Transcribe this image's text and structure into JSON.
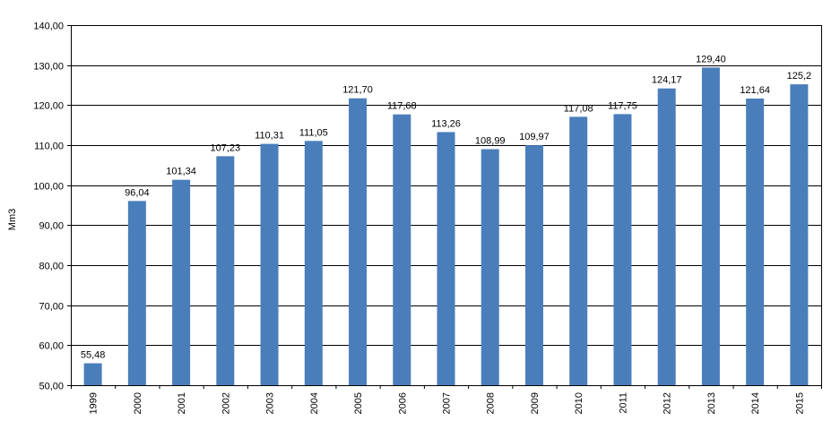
{
  "chart_data": {
    "type": "bar",
    "title": "",
    "xlabel": "",
    "ylabel": "Mm3",
    "ylim": [
      50,
      140
    ],
    "ytick_step": 10,
    "ytick_labels": [
      "50,00",
      "60,00",
      "70,00",
      "80,00",
      "90,00",
      "100,00",
      "110,00",
      "120,00",
      "130,00",
      "140,00"
    ],
    "grid": true,
    "legend": "none",
    "bar_color": "#4a7ebb",
    "categories": [
      "1999",
      "2000",
      "2001",
      "2002",
      "2003",
      "2004",
      "2005",
      "2006",
      "2007",
      "2008",
      "2009",
      "2010",
      "2011",
      "2012",
      "2013",
      "2014",
      "2015"
    ],
    "values": [
      55.48,
      96.04,
      101.34,
      107.23,
      110.31,
      111.05,
      121.7,
      117.68,
      113.26,
      108.99,
      109.97,
      117.08,
      117.75,
      124.17,
      129.4,
      121.64,
      125.2
    ],
    "data_labels": [
      "55,48",
      "96,04",
      "101,34",
      "107,23",
      "110,31",
      "111,05",
      "121,70",
      "117,68",
      "113,26",
      "108,99",
      "109,97",
      "117,08",
      "117,75",
      "124,17",
      "129,40",
      "121,64",
      "125,2"
    ]
  }
}
